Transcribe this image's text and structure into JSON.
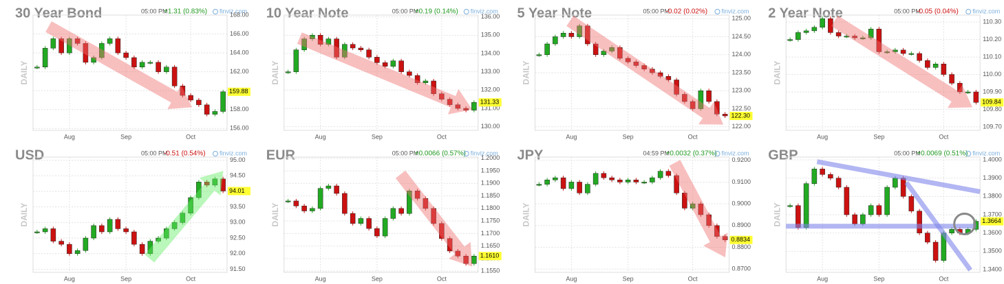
{
  "chart_data": [
    {
      "type": "candle",
      "title": "30 Year Bond",
      "time": "05:00 PM",
      "change": "+1.31 (0.83%)",
      "change_color": "#229922",
      "source": "finviz.com",
      "y_label": "DAILY",
      "categories": [
        null,
        null,
        null,
        null,
        "Aug",
        null,
        null,
        null,
        null,
        null,
        null,
        "Sep",
        null,
        null,
        null,
        null,
        null,
        null,
        null,
        "Oct",
        null,
        null,
        null,
        null
      ],
      "values": [
        162.5,
        164.5,
        165.5,
        164,
        165.5,
        165,
        163,
        163.5,
        165,
        165.5,
        164,
        163.5,
        162.5,
        163,
        163,
        162,
        162.5,
        160.5,
        159.5,
        159,
        158.5,
        157.5,
        157.8,
        159.88
      ],
      "last": {
        "value": 159.88,
        "label": "159.88"
      },
      "up_color": "#22aa22",
      "down_color": "#cc1111",
      "ylim": [
        155.8,
        168
      ],
      "yticks": [
        {
          "value": 156,
          "label": "156.00"
        },
        {
          "value": 158,
          "label": "158.00"
        },
        {
          "value": 160,
          "label": "160.00"
        },
        {
          "value": 162,
          "label": "162.00"
        },
        {
          "value": 164,
          "label": "164.00"
        },
        {
          "value": 166,
          "label": "166.00"
        },
        {
          "value": 168,
          "label": "168.00"
        }
      ],
      "grid": true
    },
    {
      "type": "candle",
      "title": "10 Year Note",
      "time": "05:00 PM",
      "change": "+0.19 (0.14%)",
      "change_color": "#229922",
      "source": "finviz.com",
      "y_label": "DAILY",
      "categories": [
        null,
        null,
        null,
        null,
        "Aug",
        null,
        null,
        null,
        null,
        null,
        null,
        "Sep",
        null,
        null,
        null,
        null,
        null,
        null,
        null,
        "Oct",
        null,
        null,
        null,
        null
      ],
      "values": [
        133,
        134.2,
        134.8,
        135,
        134.5,
        134.8,
        133.8,
        134.5,
        134.3,
        134.2,
        133.8,
        133.5,
        133.3,
        133.6,
        133,
        132.8,
        132.4,
        132.5,
        131.8,
        131.5,
        131.2,
        131,
        130.9,
        131.33
      ],
      "last": {
        "value": 131.33,
        "label": "131.33"
      },
      "up_color": "#22aa22",
      "down_color": "#cc1111",
      "ylim": [
        129.8,
        136.1
      ],
      "yticks": [
        {
          "value": 130,
          "label": "130.00"
        },
        {
          "value": 131,
          "label": "131.00"
        },
        {
          "value": 132,
          "label": "132.00"
        },
        {
          "value": 133,
          "label": "133.00"
        },
        {
          "value": 134,
          "label": "134.00"
        },
        {
          "value": 135,
          "label": "135.00"
        },
        {
          "value": 136,
          "label": "136.00"
        }
      ],
      "grid": true
    },
    {
      "type": "candle",
      "title": "5 Year Note",
      "time": "05:00 PM",
      "change": "-0.02 (0.02%)",
      "change_color": "#cc1111",
      "source": "finviz.com",
      "y_label": "DAILY",
      "categories": [
        null,
        null,
        null,
        null,
        "Aug",
        null,
        null,
        null,
        null,
        null,
        null,
        "Sep",
        null,
        null,
        null,
        null,
        null,
        null,
        null,
        "Oct",
        null,
        null,
        null,
        null
      ],
      "values": [
        124,
        124.3,
        124.5,
        124.6,
        124.5,
        124.8,
        124.3,
        124,
        124.1,
        124.2,
        123.9,
        123.8,
        123.7,
        123.6,
        123.5,
        123.4,
        123.3,
        122.9,
        122.7,
        122.5,
        123,
        122.7,
        122.35,
        122.3
      ],
      "last": {
        "value": 122.3,
        "label": "122.30"
      },
      "up_color": "#22aa22",
      "down_color": "#cc1111",
      "ylim": [
        121.9,
        125.1
      ],
      "yticks": [
        {
          "value": 122,
          "label": "122.00"
        },
        {
          "value": 122.5,
          "label": "122.50"
        },
        {
          "value": 123,
          "label": "123.00"
        },
        {
          "value": 123.5,
          "label": "123.50"
        },
        {
          "value": 124,
          "label": "124.00"
        },
        {
          "value": 124.5,
          "label": "124.50"
        },
        {
          "value": 125,
          "label": "125.00"
        }
      ],
      "grid": true
    },
    {
      "type": "candle",
      "title": "2 Year Note",
      "time": "05:00 PM",
      "change": "-0.05 (0.04%)",
      "change_color": "#cc1111",
      "source": "finviz.com",
      "y_label": "DAILY",
      "categories": [
        null,
        null,
        null,
        null,
        "Aug",
        null,
        null,
        null,
        null,
        null,
        null,
        "Sep",
        null,
        null,
        null,
        null,
        null,
        null,
        null,
        "Oct",
        null,
        null,
        null,
        null
      ],
      "values": [
        110.2,
        110.24,
        110.25,
        110.27,
        110.32,
        110.24,
        110.22,
        110.22,
        110.21,
        110.21,
        110.26,
        110.13,
        110.13,
        110.14,
        110.12,
        110.12,
        110.08,
        110.04,
        110.06,
        110.0,
        109.95,
        109.9,
        109.9,
        109.84
      ],
      "last": {
        "value": 109.84,
        "label": "109.84"
      },
      "up_color": "#22aa22",
      "down_color": "#cc1111",
      "ylim": [
        109.68,
        110.34
      ],
      "yticks": [
        {
          "value": 109.7,
          "label": "109.70"
        },
        {
          "value": 109.8,
          "label": "109.80"
        },
        {
          "value": 109.9,
          "label": "109.90"
        },
        {
          "value": 110,
          "label": "110.00"
        },
        {
          "value": 110.1,
          "label": "110.10"
        },
        {
          "value": 110.2,
          "label": "110.20"
        },
        {
          "value": 110.3,
          "label": "110.30"
        }
      ],
      "grid": true
    },
    {
      "type": "candle",
      "title": "USD",
      "time": "05:00 PM",
      "change": "-0.51 (0.54%)",
      "change_color": "#cc1111",
      "source": "finviz.com",
      "y_label": "DAILY",
      "categories": [
        null,
        null,
        null,
        null,
        "Aug",
        null,
        null,
        null,
        null,
        null,
        null,
        "Sep",
        null,
        null,
        null,
        null,
        null,
        null,
        null,
        "Oct",
        null,
        null,
        null,
        null
      ],
      "values": [
        92.7,
        92.8,
        92.4,
        92.3,
        92.0,
        92.1,
        92.5,
        92.9,
        92.7,
        93.1,
        92.8,
        92.7,
        92.3,
        92.0,
        92.4,
        92.5,
        92.8,
        93.0,
        93.3,
        93.8,
        94.3,
        94.2,
        94.4,
        94.01
      ],
      "last": {
        "value": 94.01,
        "label": "94.01"
      },
      "up_color": "#22aa22",
      "down_color": "#cc1111",
      "ylim": [
        91.4,
        95.1
      ],
      "yticks": [
        {
          "value": 91.5,
          "label": "91.50"
        },
        {
          "value": 92,
          "label": "92.00"
        },
        {
          "value": 92.5,
          "label": "92.50"
        },
        {
          "value": 93,
          "label": "93.00"
        },
        {
          "value": 93.5,
          "label": "93.50"
        },
        {
          "value": 94,
          "label": "94.00"
        },
        {
          "value": 94.5,
          "label": "94.50"
        },
        {
          "value": 95,
          "label": "95.00"
        }
      ],
      "grid": true
    },
    {
      "type": "candle",
      "title": "EUR",
      "time": "05:00 PM",
      "change": "+0.0066 (0.57%)",
      "change_color": "#229922",
      "source": "finviz.com",
      "y_label": "DAILY",
      "categories": [
        null,
        null,
        null,
        null,
        "Aug",
        null,
        null,
        null,
        null,
        null,
        null,
        "Sep",
        null,
        null,
        null,
        null,
        null,
        null,
        null,
        "Oct",
        null,
        null,
        null,
        null
      ],
      "values": [
        1.183,
        1.181,
        1.179,
        1.18,
        1.188,
        1.189,
        1.186,
        1.178,
        1.174,
        1.176,
        1.172,
        1.169,
        1.176,
        1.18,
        1.178,
        1.187,
        1.184,
        1.18,
        1.174,
        1.168,
        1.163,
        1.161,
        1.158,
        1.161
      ],
      "last": {
        "value": 1.161,
        "label": "1.1610"
      },
      "up_color": "#22aa22",
      "down_color": "#cc1111",
      "ylim": [
        1.1545,
        1.2005
      ],
      "yticks": [
        {
          "value": 1.155,
          "label": "1.1550"
        },
        {
          "value": 1.16,
          "label": "1.1600"
        },
        {
          "value": 1.165,
          "label": "1.1650"
        },
        {
          "value": 1.17,
          "label": "1.1700"
        },
        {
          "value": 1.175,
          "label": "1.1750"
        },
        {
          "value": 1.18,
          "label": "1.1800"
        },
        {
          "value": 1.185,
          "label": "1.1850"
        },
        {
          "value": 1.19,
          "label": "1.1900"
        },
        {
          "value": 1.195,
          "label": "1.1950"
        },
        {
          "value": 1.2,
          "label": "1.2000"
        }
      ],
      "grid": true
    },
    {
      "type": "candle",
      "title": "JPY",
      "time": "04:59 PM",
      "change": "+0.0032 (0.37%)",
      "change_color": "#229922",
      "source": "finviz.com",
      "y_label": "DAILY",
      "categories": [
        null,
        null,
        null,
        null,
        "Aug",
        null,
        null,
        null,
        null,
        null,
        null,
        "Sep",
        null,
        null,
        null,
        null,
        null,
        null,
        null,
        "Oct",
        null,
        null,
        null,
        null
      ],
      "values": [
        0.909,
        0.911,
        0.912,
        0.907,
        0.91,
        0.905,
        0.909,
        0.914,
        0.912,
        0.911,
        0.91,
        0.911,
        0.91,
        0.91,
        0.912,
        0.915,
        0.913,
        0.905,
        0.898,
        0.9,
        0.895,
        0.89,
        0.885,
        0.8834
      ],
      "last": {
        "value": 0.8834,
        "label": "0.8834"
      },
      "up_color": "#22aa22",
      "down_color": "#cc1111",
      "ylim": [
        0.8685,
        0.9215
      ],
      "yticks": [
        {
          "value": 0.87,
          "label": "0.8700"
        },
        {
          "value": 0.88,
          "label": "0.8800"
        },
        {
          "value": 0.89,
          "label": "0.8900"
        },
        {
          "value": 0.9,
          "label": "0.9000"
        },
        {
          "value": 0.91,
          "label": "0.9100"
        },
        {
          "value": 0.92,
          "label": "0.9200"
        }
      ],
      "grid": true
    },
    {
      "type": "candle",
      "title": "GBP",
      "time": "05:00 PM",
      "change": "+0.0069 (0.51%)",
      "change_color": "#229922",
      "source": "finviz.com",
      "y_label": "DAILY",
      "categories": [
        null,
        null,
        null,
        null,
        "Aug",
        null,
        null,
        null,
        null,
        null,
        null,
        "Sep",
        null,
        null,
        null,
        null,
        null,
        null,
        null,
        "Oct",
        null,
        null,
        null,
        null
      ],
      "values": [
        1.375,
        1.363,
        1.387,
        1.395,
        1.392,
        1.39,
        1.385,
        1.37,
        1.365,
        1.37,
        1.375,
        1.37,
        1.385,
        1.39,
        1.38,
        1.372,
        1.36,
        1.355,
        1.345,
        1.36,
        1.362,
        1.36,
        1.362,
        1.3664
      ],
      "last": {
        "value": 1.3664,
        "label": "1.3664"
      },
      "up_color": "#22aa22",
      "down_color": "#cc1111",
      "ylim": [
        1.3385,
        1.4015
      ],
      "yticks": [
        {
          "value": 1.34,
          "label": "1.3400"
        },
        {
          "value": 1.35,
          "label": "1.3500"
        },
        {
          "value": 1.36,
          "label": "1.3600"
        },
        {
          "value": 1.37,
          "label": "1.3700"
        },
        {
          "value": 1.38,
          "label": "1.3800"
        },
        {
          "value": 1.39,
          "label": "1.3900"
        },
        {
          "value": 1.4,
          "label": "1.4000"
        }
      ],
      "grid": true
    }
  ]
}
